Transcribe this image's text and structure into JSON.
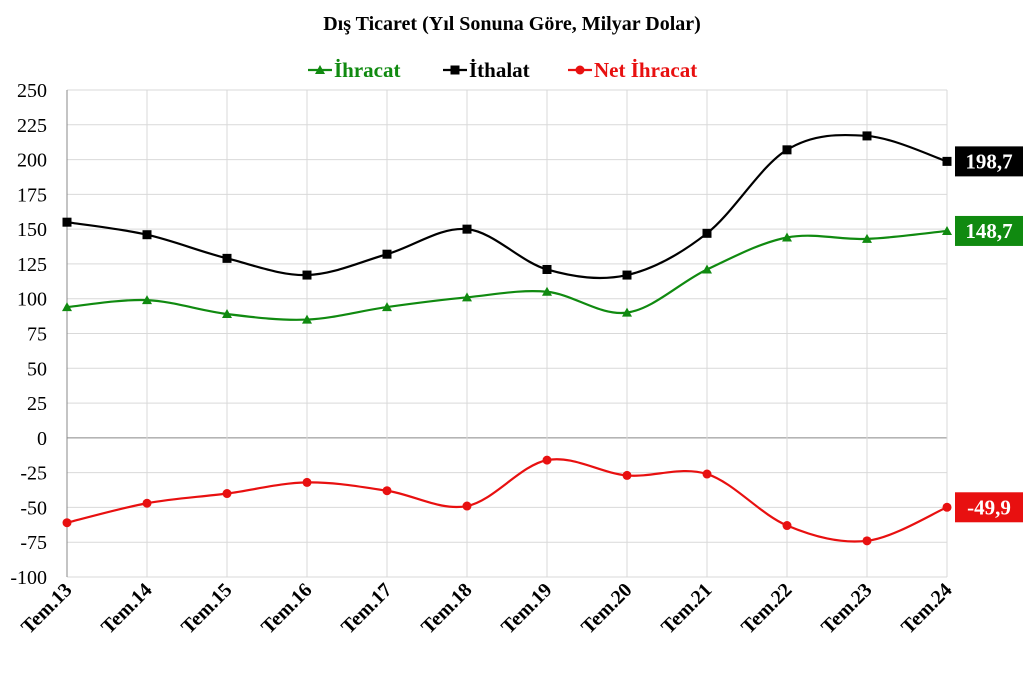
{
  "chart_data": {
    "type": "line",
    "title": "Dış Ticaret (Yıl Sonuna Göre, Milyar Dolar)",
    "xlabel": "",
    "ylabel": "",
    "ylim": [
      -100,
      250
    ],
    "yticks": [
      250,
      225,
      200,
      175,
      150,
      125,
      100,
      75,
      50,
      25,
      0,
      -25,
      -50,
      -75,
      -100
    ],
    "grid": true,
    "legend_position": "top-center",
    "categories": [
      "Tem.13",
      "Tem.14",
      "Tem.15",
      "Tem.16",
      "Tem.17",
      "Tem.18",
      "Tem.19",
      "Tem.20",
      "Tem.21",
      "Tem.22",
      "Tem.23",
      "Tem.24"
    ],
    "series": [
      {
        "name": "İhracat",
        "color": "#108a10",
        "marker": "triangle",
        "end_label": "148,7",
        "values": [
          94,
          99,
          89,
          85,
          94,
          101,
          105,
          90,
          121,
          144,
          143,
          148.7
        ]
      },
      {
        "name": "İthalat",
        "color": "#000000",
        "marker": "square",
        "end_label": "198,7",
        "values": [
          155,
          146,
          129,
          117,
          132,
          150,
          121,
          117,
          147,
          207,
          217,
          198.7
        ]
      },
      {
        "name": "Net İhracat",
        "color": "#e81010",
        "marker": "circle",
        "end_label": "-49,9",
        "values": [
          -61,
          -47,
          -40,
          -32,
          -38,
          -49,
          -16,
          -27,
          -26,
          -63,
          -74,
          -49.9
        ]
      }
    ]
  }
}
